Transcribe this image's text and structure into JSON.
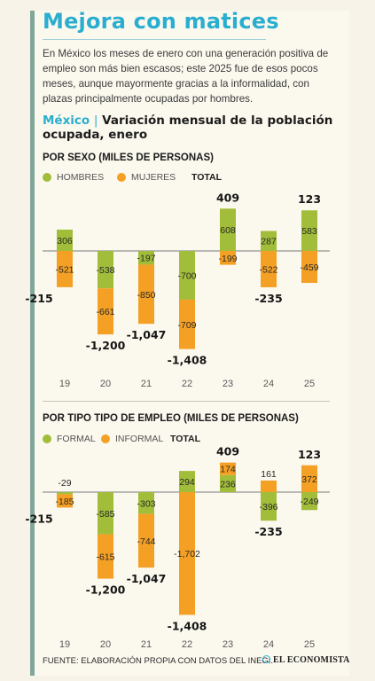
{
  "header": {
    "title": "Mejora con matices",
    "intro": "En México los meses de enero con una generación positiva de empleo son más bien escasos; este 2025 fue de esos pocos meses, aunque mayormente gracias a la informalidad, con plazas principalmente ocupadas por hombres.",
    "country": "México",
    "separator": "|",
    "subtitle": "Variación mensual de la población ocupada, enero"
  },
  "colors": {
    "green": "#a2bd3a",
    "orange": "#f4a024",
    "accent": "#2aaed0"
  },
  "footer": {
    "source": "FUENTE: ELABORACIÓN PROPIA CON DATOS DEL INEGI.",
    "brand": "EL ECONOMISTA"
  },
  "chart_data": [
    {
      "type": "bar",
      "stacked": true,
      "title": "POR SEXO (MILES DE PERSONAS)",
      "categories": [
        "19",
        "20",
        "21",
        "22",
        "23",
        "24",
        "25"
      ],
      "series": [
        {
          "name": "HOMBRES",
          "color": "#a2bd3a",
          "values": [
            306,
            -538,
            -197,
            -700,
            608,
            287,
            583
          ]
        },
        {
          "name": "MUJERES",
          "color": "#f4a024",
          "values": [
            -521,
            -661,
            -850,
            -709,
            -199,
            -522,
            -459
          ]
        }
      ],
      "total_label": "TOTAL",
      "totals": [
        -215,
        -1200,
        -1047,
        -1408,
        409,
        -235,
        123
      ],
      "value_labels": {
        "HOMBRES": [
          "306",
          "-538",
          "-197",
          "-700",
          "608",
          "287",
          "583"
        ],
        "MUJERES": [
          "-521",
          "-661",
          "-850",
          "-709",
          "-199",
          "-522",
          "-459"
        ],
        "TOTAL": [
          "-215",
          "-1,200",
          "-1,047",
          "-1,408",
          "409",
          "-235",
          "123"
        ]
      },
      "legend_position": "top-left",
      "grid": false
    },
    {
      "type": "bar",
      "stacked": true,
      "title": "POR TIPO TIPO DE EMPLEO (MILES DE PERSONAS)",
      "categories": [
        "19",
        "20",
        "21",
        "22",
        "23",
        "24",
        "25"
      ],
      "series": [
        {
          "name": "FORMAL",
          "color": "#a2bd3a",
          "values": [
            -29,
            -585,
            -303,
            294,
            236,
            -396,
            -249
          ]
        },
        {
          "name": "INFORMAL",
          "color": "#f4a024",
          "values": [
            -185,
            -615,
            -744,
            -1702,
            174,
            161,
            372
          ]
        }
      ],
      "total_label": "TOTAL",
      "totals": [
        -215,
        -1200,
        -1047,
        -1408,
        409,
        -235,
        123
      ],
      "value_labels": {
        "FORMAL": [
          "-29",
          "-585",
          "-303",
          "294",
          "236",
          "-396",
          "-249"
        ],
        "INFORMAL": [
          "-185",
          "-615",
          "-744",
          "-1,702",
          "174",
          "161",
          "372"
        ],
        "TOTAL": [
          "-215",
          "-1,200",
          "-1,047",
          "-1,408",
          "409",
          "-235",
          "123"
        ]
      },
      "legend_position": "top-left",
      "grid": false
    }
  ]
}
